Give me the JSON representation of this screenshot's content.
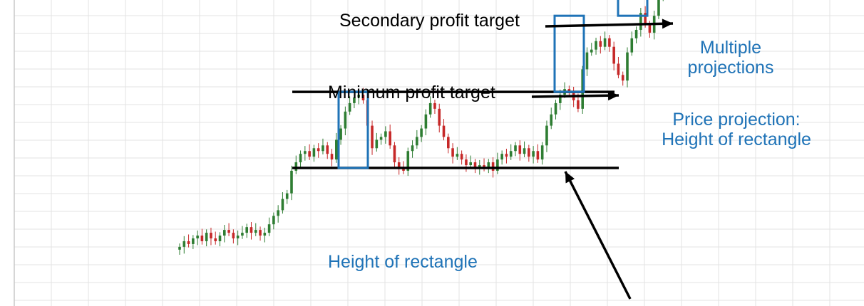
{
  "chart_data": {
    "type": "candlestick",
    "title": "",
    "xlabel": "",
    "ylabel": "",
    "grid": true,
    "colors": {
      "up": "#2e7d32",
      "down": "#c62828",
      "grid": "#e3e3e3",
      "rectangle_line": "#000000",
      "projection_box": "#1f73b7",
      "annotation_blue": "#1f73b7"
    },
    "ylim": [
      0,
      100
    ],
    "pattern_levels": {
      "resistance": 52,
      "support": 25
    },
    "projection_levels": {
      "minimum_target": 79,
      "secondary_target": 106
    },
    "series": [
      {
        "name": "",
        "closes": [
          -3,
          -1,
          -2,
          0,
          1,
          -1,
          2,
          0,
          -1,
          1,
          3,
          2,
          0,
          1,
          2,
          4,
          2,
          3,
          1,
          2,
          5,
          8,
          10,
          14,
          16,
          24,
          27,
          30,
          31,
          29,
          32,
          31,
          33,
          30,
          28,
          35,
          39,
          45,
          48,
          50,
          51,
          49,
          40,
          32,
          35,
          36,
          38,
          33,
          27,
          25,
          24,
          31,
          33,
          36,
          39,
          44,
          48,
          46,
          40,
          36,
          32,
          29,
          30,
          28,
          26,
          27,
          25,
          26,
          25,
          27,
          24,
          28,
          30,
          29,
          31,
          33,
          30,
          32,
          29,
          31,
          28,
          33,
          40,
          44,
          48,
          51,
          53,
          52,
          49,
          46,
          60,
          66,
          67,
          70,
          68,
          71,
          68,
          62,
          58,
          56,
          66,
          71,
          74,
          80,
          76,
          73,
          79,
          86,
          91,
          96,
          103,
          107,
          111,
          114
        ]
      }
    ],
    "annotations": {
      "secondary_target": "Secondary profit target",
      "minimum_target": "Minimum profit target",
      "multiple_line1": "Multiple",
      "multiple_line2": "projections",
      "projection_line1": "Price projection:",
      "projection_line2": "Height of rectangle",
      "height_of_rectangle": "Height of rectangle"
    }
  }
}
